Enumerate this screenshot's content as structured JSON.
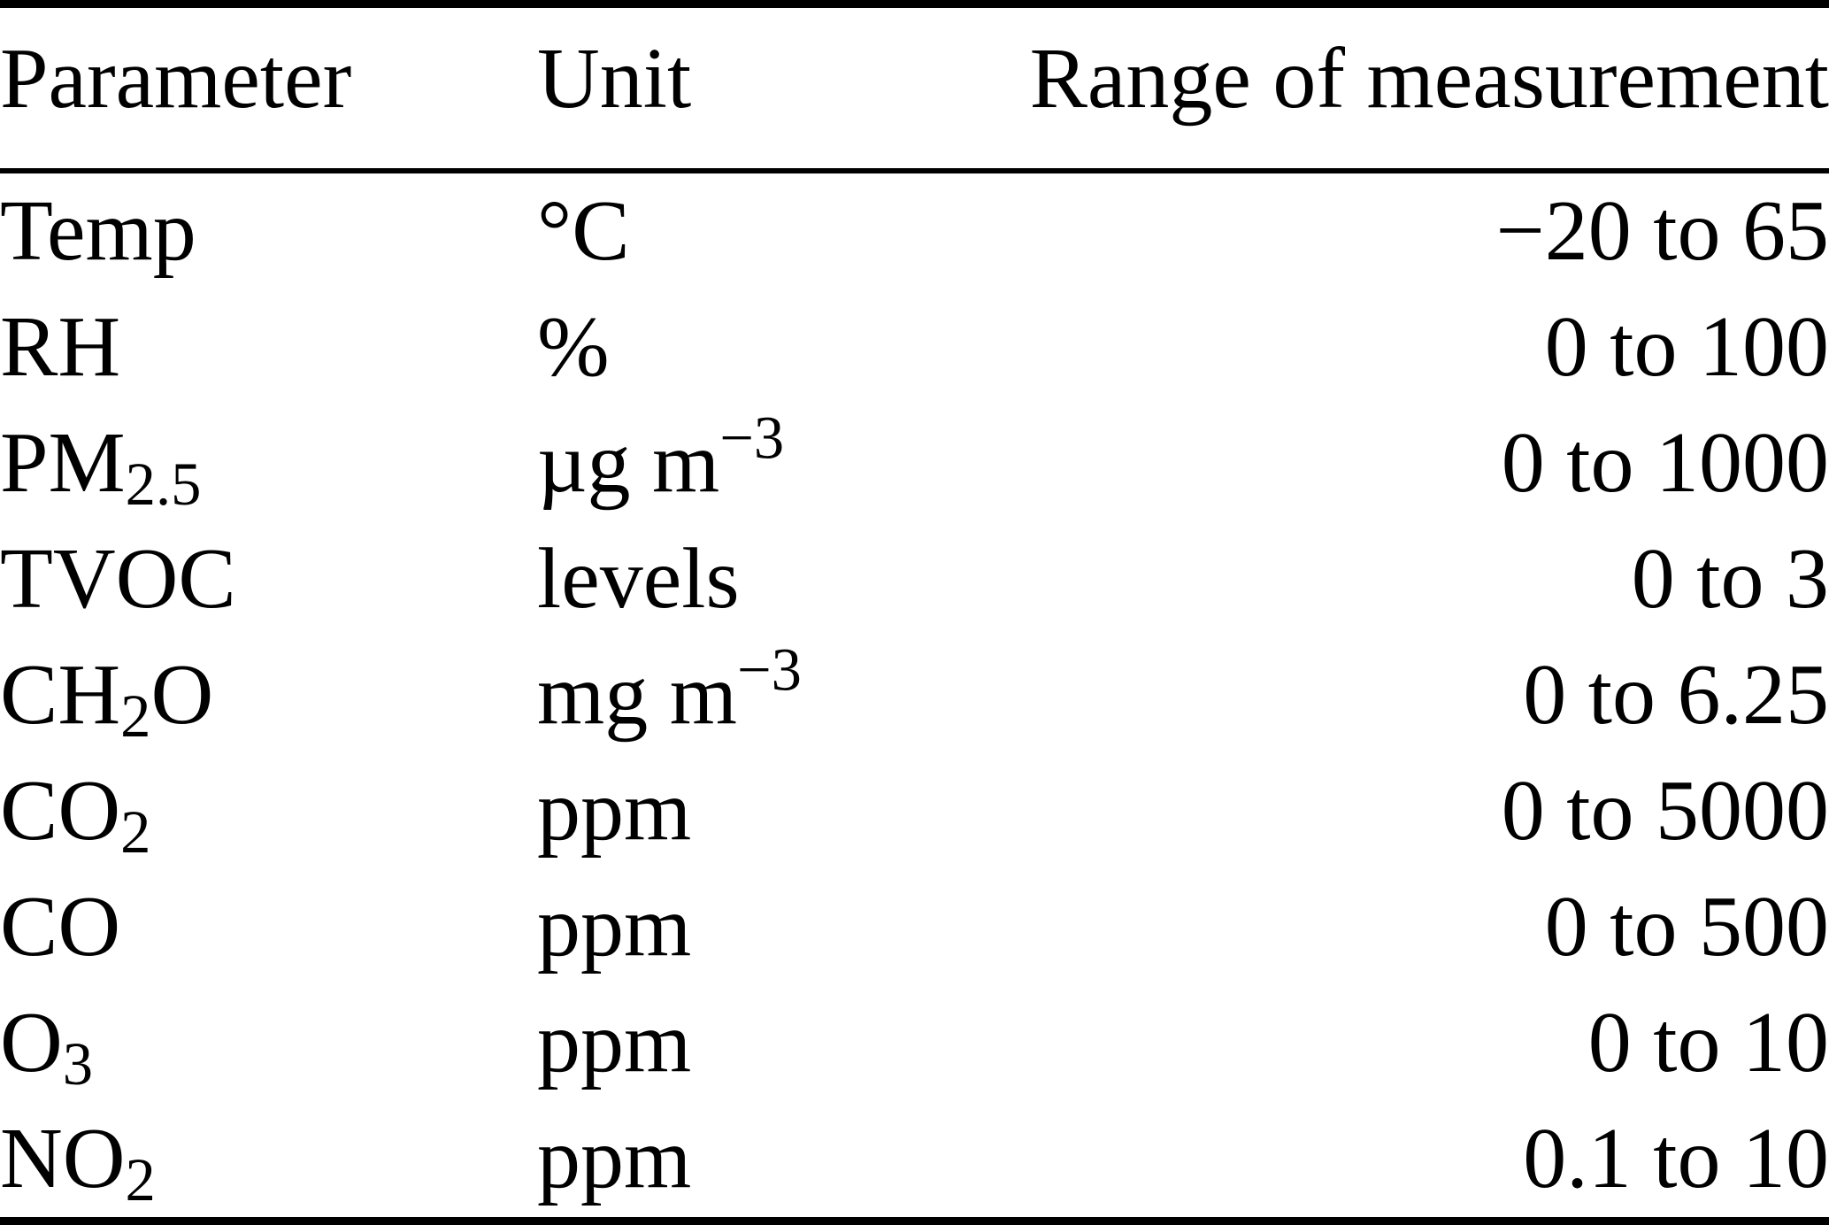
{
  "table": {
    "headers": [
      "Parameter",
      "Unit",
      "Range of measurement"
    ],
    "rows": [
      {
        "param": [
          {
            "t": "Temp"
          }
        ],
        "unit": [
          {
            "t": "°C"
          }
        ],
        "range": "−20 to 65"
      },
      {
        "param": [
          {
            "t": "RH"
          }
        ],
        "unit": [
          {
            "t": "%"
          }
        ],
        "range": "0 to 100"
      },
      {
        "param": [
          {
            "t": "PM"
          },
          {
            "t": "2.5",
            "s": "sub"
          }
        ],
        "unit": [
          {
            "t": "µg m"
          },
          {
            "t": "−3",
            "s": "sup"
          }
        ],
        "range": "0 to 1000"
      },
      {
        "param": [
          {
            "t": "TVOC"
          }
        ],
        "unit": [
          {
            "t": "levels"
          }
        ],
        "range": "0 to 3"
      },
      {
        "param": [
          {
            "t": "CH"
          },
          {
            "t": "2",
            "s": "sub"
          },
          {
            "t": "O"
          }
        ],
        "unit": [
          {
            "t": "mg m"
          },
          {
            "t": "−3",
            "s": "sup"
          }
        ],
        "range": "0 to 6.25"
      },
      {
        "param": [
          {
            "t": "CO"
          },
          {
            "t": "2",
            "s": "sub"
          }
        ],
        "unit": [
          {
            "t": "ppm"
          }
        ],
        "range": "0 to 5000"
      },
      {
        "param": [
          {
            "t": "CO"
          }
        ],
        "unit": [
          {
            "t": "ppm"
          }
        ],
        "range": "0 to 500"
      },
      {
        "param": [
          {
            "t": "O"
          },
          {
            "t": "3",
            "s": "sub"
          }
        ],
        "unit": [
          {
            "t": "ppm"
          }
        ],
        "range": "0 to 10"
      },
      {
        "param": [
          {
            "t": "NO"
          },
          {
            "t": "2",
            "s": "sub"
          }
        ],
        "unit": [
          {
            "t": "ppm"
          }
        ],
        "range": "0.1 to 10"
      }
    ]
  },
  "colors": {
    "text": "#000000",
    "background": "#ffffff",
    "rule": "#000000"
  },
  "chart_data": {
    "type": "table",
    "title": "",
    "columns": [
      "Parameter",
      "Unit",
      "Range of measurement"
    ],
    "rows": [
      [
        "Temp",
        "°C",
        "−20 to 65"
      ],
      [
        "RH",
        "%",
        "0 to 100"
      ],
      [
        "PM2.5",
        "µg m−3",
        "0 to 1000"
      ],
      [
        "TVOC",
        "levels",
        "0 to 3"
      ],
      [
        "CH2O",
        "mg m−3",
        "0 to 6.25"
      ],
      [
        "CO2",
        "ppm",
        "0 to 5000"
      ],
      [
        "CO",
        "ppm",
        "0 to 500"
      ],
      [
        "O3",
        "ppm",
        "0 to 10"
      ],
      [
        "NO2",
        "ppm",
        "0.1 to 10"
      ]
    ]
  }
}
